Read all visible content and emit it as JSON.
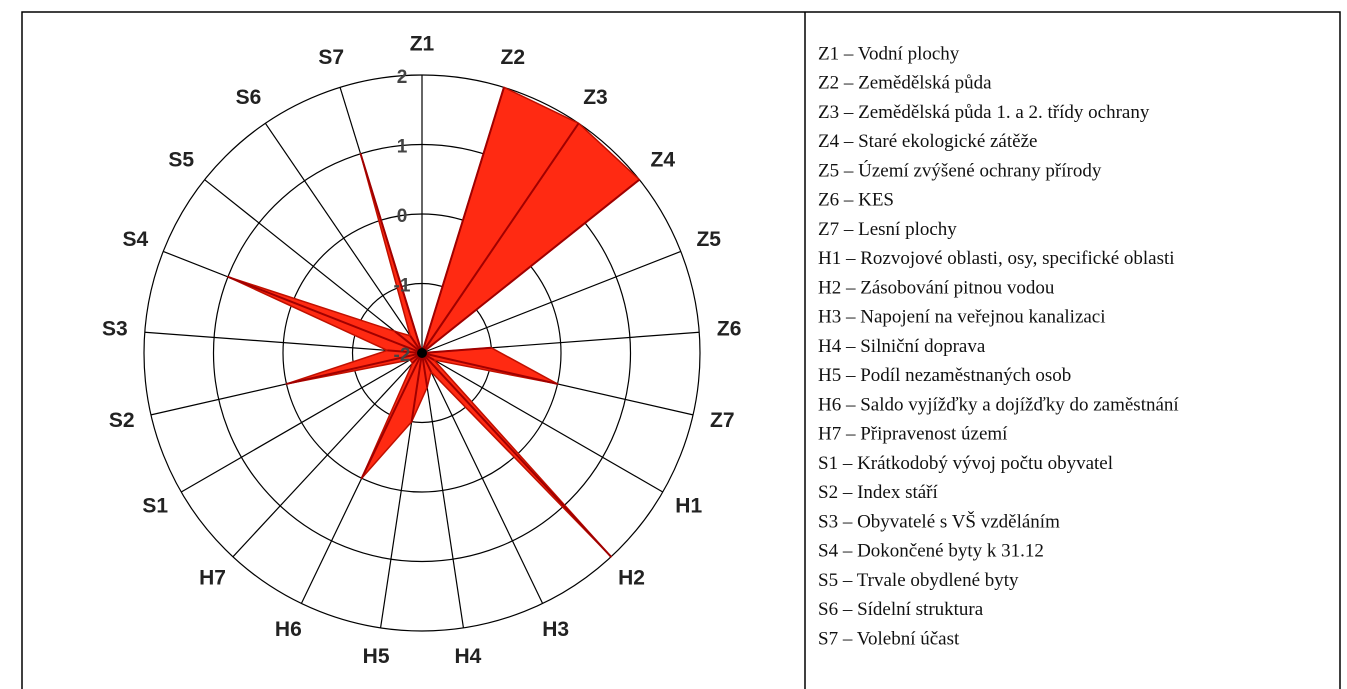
{
  "chart_data": {
    "type": "radar",
    "categories": [
      "Z1",
      "Z2",
      "Z3",
      "Z4",
      "Z5",
      "Z6",
      "Z7",
      "H1",
      "H2",
      "H3",
      "H4",
      "H5",
      "H6",
      "H7",
      "S1",
      "S2",
      "S3",
      "S4",
      "S5",
      "S6",
      "S7"
    ],
    "values": [
      -2,
      2,
      2,
      2,
      -2,
      -1,
      0,
      -1.8,
      2,
      -1.7,
      -1.5,
      -1,
      0,
      -1.8,
      -1.8,
      0,
      -1.5,
      1,
      -1.5,
      -1.7,
      1
    ],
    "color": "#ff2a12",
    "ylim": [
      -2,
      2
    ],
    "yticks": [
      -2,
      -1,
      0,
      1,
      2
    ],
    "legend_items": [
      "Z1 – Vodní plochy",
      "Z2 – Zemědělská půda",
      "Z3 – Zemědělská půda 1. a 2. třídy ochrany",
      "Z4 – Staré ekologické zátěže",
      "Z5 – Území zvýšené ochrany přírody",
      "Z6 – KES",
      "Z7 – Lesní plochy",
      "H1 – Rozvojové oblasti, osy, specifické oblasti",
      "H2 – Zásobování pitnou vodou",
      "H3 – Napojení na veřejnou kanalizaci",
      "H4 – Silniční doprava",
      "H5 – Podíl nezaměstnaných osob",
      "H6 – Saldo vyjížďky a dojížďky do zaměstnání",
      "H7 – Připravenost území",
      "S1 – Krátkodobý vývoj počtu obyvatel",
      "S2 – Index stáří",
      "S3 – Obyvatelé s VŠ vzděláním",
      "S4 – Dokončené byty k 31.12",
      "S5 – Trvale obydlené byty",
      "S6 – Sídelní struktura",
      "S7 – Volební účast"
    ]
  }
}
